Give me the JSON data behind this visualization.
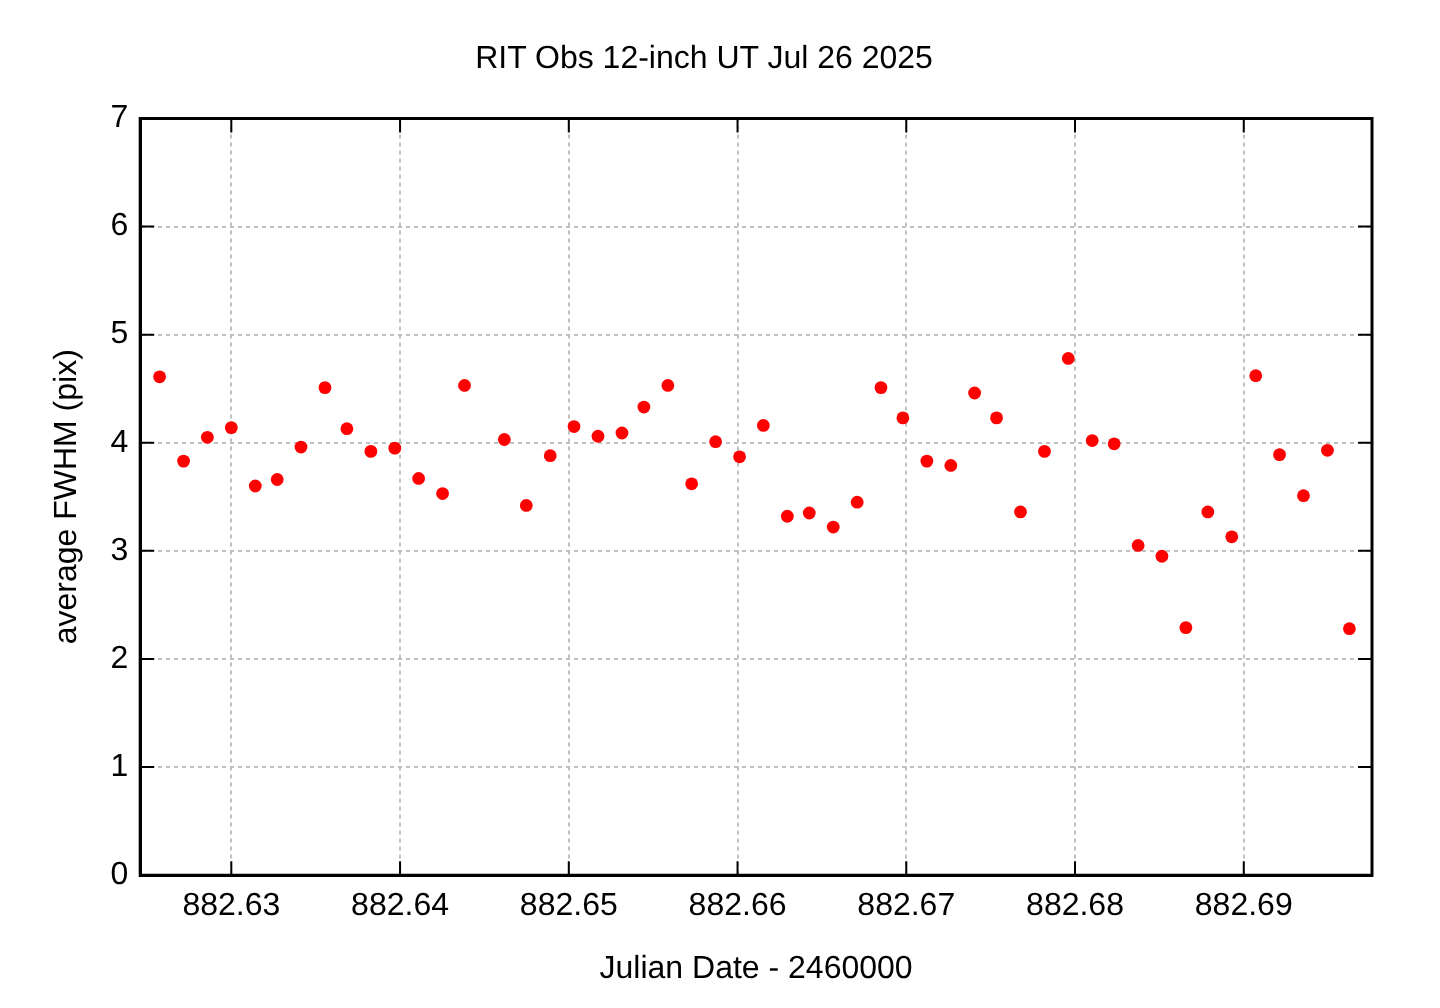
{
  "chart_data": {
    "type": "scatter",
    "title": "RIT Obs 12-inch UT Jul 26 2025",
    "xlabel": "Julian Date - 2460000",
    "ylabel": "average FWHM (pix)",
    "x": [
      882.62575,
      882.62717,
      882.62858,
      882.63,
      882.63142,
      882.63272,
      882.63413,
      882.63555,
      882.63685,
      882.63827,
      882.63969,
      882.6411,
      882.64252,
      882.64382,
      882.64618,
      882.64748,
      882.6489,
      882.65031,
      882.65173,
      882.65315,
      882.65445,
      882.65587,
      882.65728,
      882.6587,
      882.66012,
      882.66153,
      882.66295,
      882.66425,
      882.66567,
      882.66709,
      882.6685,
      882.6698,
      882.67122,
      882.67264,
      882.67405,
      882.67535,
      882.67677,
      882.67819,
      882.6796,
      882.68102,
      882.68232,
      882.68374,
      882.68515,
      882.68657,
      882.68787,
      882.68929,
      882.69071,
      882.69212,
      882.69354,
      882.69496,
      882.69626
    ],
    "series": [
      {
        "color": "#ff0000",
        "values": [
          4.61,
          3.83,
          4.05,
          4.14,
          3.6,
          3.66,
          3.96,
          4.51,
          4.13,
          3.92,
          3.95,
          3.67,
          3.53,
          4.53,
          4.03,
          3.42,
          3.88,
          4.15,
          4.06,
          4.09,
          4.33,
          4.53,
          3.62,
          4.01,
          3.87,
          4.16,
          3.32,
          3.35,
          3.22,
          3.45,
          4.51,
          4.23,
          3.83,
          3.79,
          4.46,
          4.23,
          3.36,
          3.92,
          4.78,
          4.02,
          3.99,
          3.05,
          2.95,
          2.29,
          3.36,
          3.13,
          4.62,
          3.89,
          3.51,
          3.93,
          2.28
        ]
      }
    ],
    "xlim": [
      882.6246,
      882.6976
    ],
    "xticks": [
      882.63,
      882.64,
      882.65,
      882.66,
      882.67,
      882.68,
      882.69
    ],
    "ylim": [
      0,
      7
    ],
    "yticks": [
      0,
      1,
      2,
      3,
      4,
      5,
      6,
      7
    ],
    "grid": true,
    "legend": false,
    "marker": "circle"
  }
}
